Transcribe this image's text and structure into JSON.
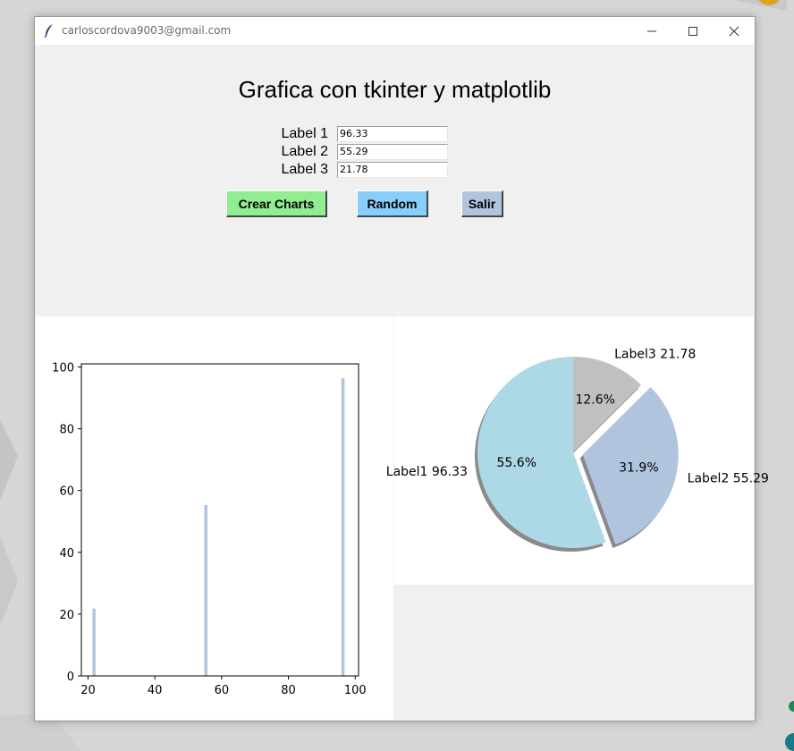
{
  "window": {
    "title": "carloscordova9003@gmail.com"
  },
  "app": {
    "heading": "Grafica con tkinter y matplotlib"
  },
  "fields": [
    {
      "label": "Label 1",
      "value": "96.33"
    },
    {
      "label": "Label 2",
      "value": "55.29"
    },
    {
      "label": "Label 3",
      "value": "21.78"
    }
  ],
  "buttons": {
    "crear": {
      "label": "Crear Charts",
      "color": "#90ee90"
    },
    "random": {
      "label": "Random",
      "color": "#87cefa"
    },
    "salir": {
      "label": "Salir",
      "color": "#b0c4de"
    }
  },
  "chart_data": [
    {
      "type": "bar",
      "x": [
        96.33,
        55.29,
        21.78
      ],
      "values": [
        96.33,
        55.29,
        21.78
      ],
      "xlim": [
        18,
        101
      ],
      "ylim": [
        0,
        101
      ],
      "xticks": [
        "20",
        "40",
        "60",
        "80",
        "100"
      ],
      "yticks": [
        "0",
        "20",
        "40",
        "60",
        "80",
        "100"
      ],
      "bar_color": "#b0c4de",
      "grid": false
    },
    {
      "type": "pie",
      "labels": [
        "Label1 96.33",
        "Label2 55.29",
        "Label3 21.78"
      ],
      "values": [
        96.33,
        55.29,
        21.78
      ],
      "pct_labels": [
        "55.6%",
        "31.9%",
        "12.6%"
      ],
      "colors": [
        "#add8e6",
        "#b0c4de",
        "#c0c0c0"
      ],
      "exploded": "Label2",
      "shadow": true
    }
  ]
}
